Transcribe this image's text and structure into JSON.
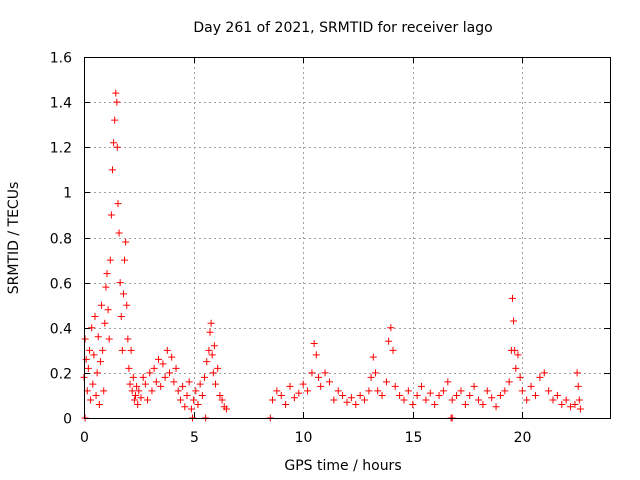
{
  "chart_data": {
    "type": "scatter",
    "title": "Day 261 of 2021, SRMTID for receiver lago",
    "xlabel": "GPS time / hours",
    "ylabel": "SRMTID / TECUs",
    "xlim": [
      0,
      24
    ],
    "ylim": [
      0,
      1.6
    ],
    "xticks": [
      0,
      5,
      10,
      15,
      20
    ],
    "xtick_labels": [
      "0",
      "5",
      "10",
      "15",
      "20"
    ],
    "yticks": [
      0,
      0.2,
      0.4,
      0.6,
      0.8,
      1,
      1.2,
      1.4,
      1.6
    ],
    "ytick_labels": [
      "0",
      "0.2",
      "0.4",
      "0.6",
      "0.8",
      "1",
      "1.2",
      "1.4",
      "1.6"
    ],
    "grid": true,
    "marker": "+",
    "color": "#ff0000",
    "series": [
      {
        "name": "SRMTID",
        "x": [
          0.0,
          0.05,
          0.1,
          0.15,
          0.2,
          0.25,
          0.3,
          0.35,
          0.4,
          0.45,
          0.5,
          0.55,
          0.6,
          0.65,
          0.7,
          0.75,
          0.8,
          0.85,
          0.9,
          0.95,
          1.0,
          1.05,
          1.1,
          1.15,
          1.2,
          1.25,
          1.3,
          1.35,
          1.4,
          1.45,
          1.5,
          1.52,
          1.55,
          1.6,
          1.65,
          1.7,
          1.75,
          1.8,
          1.85,
          1.9,
          1.95,
          2.0,
          2.05,
          2.1,
          2.15,
          2.2,
          2.25,
          2.3,
          2.35,
          2.4,
          2.45,
          2.5,
          2.6,
          2.7,
          2.8,
          2.9,
          3.0,
          3.1,
          3.2,
          3.3,
          3.4,
          3.5,
          3.6,
          3.7,
          3.8,
          3.9,
          4.0,
          4.1,
          4.2,
          4.3,
          4.4,
          4.5,
          4.6,
          4.7,
          4.8,
          4.9,
          5.0,
          5.1,
          5.2,
          5.3,
          5.4,
          5.5,
          5.6,
          5.7,
          5.75,
          5.8,
          5.85,
          5.9,
          5.95,
          6.0,
          6.1,
          6.2,
          6.3,
          6.4,
          6.5,
          8.6,
          8.8,
          9.0,
          9.2,
          9.4,
          9.6,
          9.8,
          10.0,
          10.2,
          10.4,
          10.5,
          10.6,
          10.7,
          10.8,
          11.0,
          11.2,
          11.4,
          11.6,
          11.8,
          12.0,
          12.2,
          12.4,
          12.6,
          12.8,
          13.0,
          13.1,
          13.2,
          13.3,
          13.4,
          13.6,
          13.8,
          13.9,
          14.0,
          14.1,
          14.2,
          14.4,
          14.6,
          14.8,
          15.0,
          15.2,
          15.4,
          15.6,
          15.8,
          16.0,
          16.2,
          16.4,
          16.6,
          16.8,
          17.0,
          17.2,
          17.4,
          17.6,
          17.8,
          18.0,
          18.2,
          18.4,
          18.6,
          18.8,
          19.0,
          19.2,
          19.4,
          19.5,
          19.55,
          19.6,
          19.65,
          19.7,
          19.8,
          19.9,
          20.0,
          20.2,
          20.4,
          20.6,
          20.8,
          21.0,
          21.2,
          21.4,
          21.6,
          21.8,
          22.0,
          22.2,
          22.4,
          22.5,
          22.55,
          22.6,
          22.65,
          0.05,
          4.95,
          5.55,
          8.5,
          16.75,
          16.8
        ],
        "y": [
          0.18,
          0.35,
          0.26,
          0.12,
          0.22,
          0.3,
          0.08,
          0.4,
          0.15,
          0.28,
          0.45,
          0.1,
          0.2,
          0.36,
          0.06,
          0.25,
          0.5,
          0.3,
          0.12,
          0.42,
          0.58,
          0.64,
          0.48,
          0.35,
          0.7,
          0.9,
          1.1,
          1.22,
          1.32,
          1.44,
          1.4,
          1.2,
          0.95,
          0.82,
          0.6,
          0.45,
          0.3,
          0.55,
          0.7,
          0.78,
          0.5,
          0.35,
          0.22,
          0.15,
          0.3,
          0.12,
          0.18,
          0.08,
          0.1,
          0.14,
          0.06,
          0.12,
          0.09,
          0.18,
          0.15,
          0.08,
          0.2,
          0.12,
          0.22,
          0.16,
          0.26,
          0.14,
          0.24,
          0.18,
          0.3,
          0.2,
          0.27,
          0.16,
          0.22,
          0.12,
          0.08,
          0.14,
          0.05,
          0.1,
          0.16,
          0.04,
          0.08,
          0.12,
          0.06,
          0.15,
          0.1,
          0.18,
          0.25,
          0.3,
          0.38,
          0.42,
          0.28,
          0.2,
          0.32,
          0.15,
          0.22,
          0.1,
          0.08,
          0.05,
          0.04,
          0.08,
          0.12,
          0.1,
          0.06,
          0.14,
          0.09,
          0.11,
          0.15,
          0.12,
          0.2,
          0.33,
          0.28,
          0.18,
          0.14,
          0.2,
          0.16,
          0.08,
          0.12,
          0.1,
          0.07,
          0.09,
          0.06,
          0.1,
          0.08,
          0.12,
          0.18,
          0.27,
          0.2,
          0.12,
          0.1,
          0.16,
          0.34,
          0.4,
          0.3,
          0.14,
          0.1,
          0.08,
          0.12,
          0.06,
          0.1,
          0.14,
          0.08,
          0.11,
          0.06,
          0.1,
          0.12,
          0.16,
          0.08,
          0.1,
          0.12,
          0.06,
          0.1,
          0.14,
          0.08,
          0.06,
          0.12,
          0.09,
          0.05,
          0.1,
          0.12,
          0.16,
          0.3,
          0.53,
          0.43,
          0.3,
          0.22,
          0.28,
          0.18,
          0.12,
          0.08,
          0.14,
          0.1,
          0.18,
          0.2,
          0.12,
          0.08,
          0.1,
          0.06,
          0.08,
          0.05,
          0.06,
          0.2,
          0.14,
          0.08,
          0.04,
          0.0,
          0.0,
          0.0,
          0.0,
          0.0,
          0.0
        ]
      }
    ]
  }
}
